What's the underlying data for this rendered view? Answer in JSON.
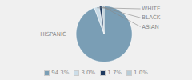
{
  "chart_data": {
    "type": "pie",
    "categories": [
      "HISPANIC",
      "WHITE",
      "BLACK",
      "ASIAN"
    ],
    "values": [
      94.3,
      3.0,
      1.7,
      1.0
    ],
    "value_labels": [
      "94.3%",
      "3.0%",
      "1.7%",
      "1.0%"
    ],
    "colors": [
      "#7a9eb5",
      "#ccdde8",
      "#1e3a5f",
      "#b8cdd8"
    ],
    "legend": "bottom"
  }
}
